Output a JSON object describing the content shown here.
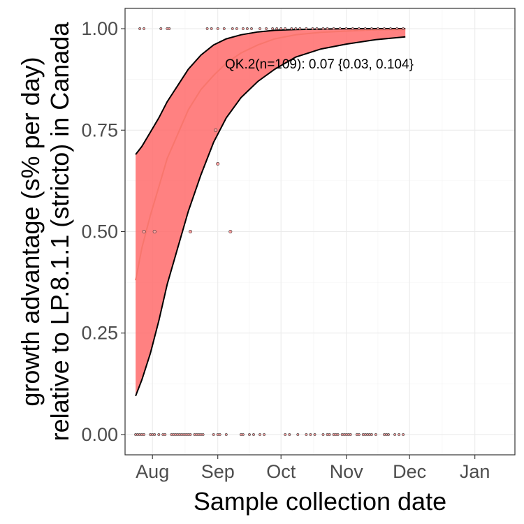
{
  "chart_data": {
    "type": "line",
    "xlabel": "Sample collection date",
    "ylabel_line1": "growth advantage (s% per day)",
    "ylabel_line2": "relative to LP.8.1.1 (stricto) in Canada",
    "annotation": "QK.2(n=109): 0.07 {0.03, 0.104}",
    "x_range": [
      "2025-07-19",
      "2026-01-20"
    ],
    "x_ticks": [
      {
        "date": "2025-08-01",
        "label": "Aug"
      },
      {
        "date": "2025-09-01",
        "label": "Sep"
      },
      {
        "date": "2025-10-01",
        "label": "Oct"
      },
      {
        "date": "2025-11-01",
        "label": "Nov"
      },
      {
        "date": "2025-12-01",
        "label": "Dec"
      },
      {
        "date": "2026-01-01",
        "label": "Jan"
      }
    ],
    "ylim": [
      -0.05,
      1.05
    ],
    "y_ticks": [
      {
        "value": 0.0,
        "label": "0.00"
      },
      {
        "value": 0.25,
        "label": "0.25"
      },
      {
        "value": 0.5,
        "label": "0.50"
      },
      {
        "value": 0.75,
        "label": "0.75"
      },
      {
        "value": 1.0,
        "label": "1.00"
      }
    ],
    "grid": true,
    "colors": {
      "ribbon": "#ff6b6b",
      "fit_line": "#f8766d",
      "ribbon_edge": "#000000",
      "point": "#ffa0a0",
      "grid": "#ebebeb"
    },
    "fit": [
      {
        "date": "2025-07-24",
        "mid": 0.38,
        "lo": 0.095,
        "hi": 0.69
      },
      {
        "date": "2025-07-27",
        "mid": 0.46,
        "lo": 0.135,
        "hi": 0.71
      },
      {
        "date": "2025-07-31",
        "mid": 0.54,
        "lo": 0.2,
        "hi": 0.745
      },
      {
        "date": "2025-08-04",
        "mid": 0.61,
        "lo": 0.28,
        "hi": 0.78
      },
      {
        "date": "2025-08-08",
        "mid": 0.68,
        "lo": 0.37,
        "hi": 0.82
      },
      {
        "date": "2025-08-13",
        "mid": 0.74,
        "lo": 0.46,
        "hi": 0.86
      },
      {
        "date": "2025-08-18",
        "mid": 0.8,
        "lo": 0.55,
        "hi": 0.9
      },
      {
        "date": "2025-08-24",
        "mid": 0.85,
        "lo": 0.64,
        "hi": 0.935
      },
      {
        "date": "2025-08-30",
        "mid": 0.885,
        "lo": 0.72,
        "hi": 0.96
      },
      {
        "date": "2025-09-05",
        "mid": 0.915,
        "lo": 0.78,
        "hi": 0.975
      },
      {
        "date": "2025-09-12",
        "mid": 0.94,
        "lo": 0.83,
        "hi": 0.985
      },
      {
        "date": "2025-09-20",
        "mid": 0.96,
        "lo": 0.87,
        "hi": 0.992
      },
      {
        "date": "2025-09-28",
        "mid": 0.975,
        "lo": 0.9,
        "hi": 0.996
      },
      {
        "date": "2025-10-08",
        "mid": 0.985,
        "lo": 0.93,
        "hi": 0.998
      },
      {
        "date": "2025-10-20",
        "mid": 0.991,
        "lo": 0.95,
        "hi": 0.999
      },
      {
        "date": "2025-11-01",
        "mid": 0.994,
        "lo": 0.962,
        "hi": 1.0
      },
      {
        "date": "2025-11-15",
        "mid": 0.997,
        "lo": 0.973,
        "hi": 1.0
      },
      {
        "date": "2025-11-29",
        "mid": 0.998,
        "lo": 0.98,
        "hi": 1.0
      }
    ],
    "points": [
      {
        "date": "2025-07-26",
        "y": 1.0
      },
      {
        "date": "2025-07-28",
        "y": 1.0
      },
      {
        "date": "2025-08-05",
        "y": 1.0
      },
      {
        "date": "2025-08-08",
        "y": 1.0
      },
      {
        "date": "2025-08-09",
        "y": 1.0
      },
      {
        "date": "2025-08-27",
        "y": 1.0
      },
      {
        "date": "2025-08-29",
        "y": 1.0
      },
      {
        "date": "2025-09-01",
        "y": 1.0
      },
      {
        "date": "2025-09-04",
        "y": 1.0
      },
      {
        "date": "2025-09-08",
        "y": 1.0
      },
      {
        "date": "2025-09-10",
        "y": 1.0
      },
      {
        "date": "2025-09-13",
        "y": 1.0
      },
      {
        "date": "2025-09-15",
        "y": 1.0
      },
      {
        "date": "2025-09-17",
        "y": 1.0
      },
      {
        "date": "2025-09-21",
        "y": 1.0
      },
      {
        "date": "2025-09-24",
        "y": 1.0
      },
      {
        "date": "2025-09-27",
        "y": 1.0
      },
      {
        "date": "2025-09-29",
        "y": 1.0
      },
      {
        "date": "2025-10-01",
        "y": 1.0
      },
      {
        "date": "2025-10-03",
        "y": 1.0
      },
      {
        "date": "2025-10-06",
        "y": 1.0
      },
      {
        "date": "2025-10-08",
        "y": 1.0
      },
      {
        "date": "2025-10-10",
        "y": 1.0
      },
      {
        "date": "2025-10-13",
        "y": 1.0
      },
      {
        "date": "2025-10-16",
        "y": 1.0
      },
      {
        "date": "2025-10-18",
        "y": 1.0
      },
      {
        "date": "2025-10-21",
        "y": 1.0
      },
      {
        "date": "2025-10-23",
        "y": 1.0
      },
      {
        "date": "2025-10-26",
        "y": 1.0
      },
      {
        "date": "2025-10-29",
        "y": 1.0
      },
      {
        "date": "2025-11-01",
        "y": 1.0
      },
      {
        "date": "2025-11-04",
        "y": 1.0
      },
      {
        "date": "2025-11-07",
        "y": 1.0
      },
      {
        "date": "2025-11-10",
        "y": 1.0
      },
      {
        "date": "2025-11-13",
        "y": 1.0
      },
      {
        "date": "2025-11-16",
        "y": 1.0
      },
      {
        "date": "2025-11-19",
        "y": 1.0
      },
      {
        "date": "2025-11-22",
        "y": 1.0
      },
      {
        "date": "2025-11-25",
        "y": 1.0
      },
      {
        "date": "2025-11-28",
        "y": 1.0
      },
      {
        "date": "2025-08-31",
        "y": 0.75
      },
      {
        "date": "2025-09-01",
        "y": 0.667
      },
      {
        "date": "2025-07-28",
        "y": 0.5
      },
      {
        "date": "2025-08-02",
        "y": 0.5
      },
      {
        "date": "2025-08-19",
        "y": 0.5
      },
      {
        "date": "2025-09-07",
        "y": 0.5
      },
      {
        "date": "2025-07-24",
        "y": 0.0
      },
      {
        "date": "2025-07-25",
        "y": 0.0
      },
      {
        "date": "2025-07-26",
        "y": 0.0
      },
      {
        "date": "2025-07-27",
        "y": 0.0
      },
      {
        "date": "2025-07-28",
        "y": 0.0
      },
      {
        "date": "2025-07-31",
        "y": 0.0
      },
      {
        "date": "2025-08-01",
        "y": 0.0
      },
      {
        "date": "2025-08-02",
        "y": 0.0
      },
      {
        "date": "2025-08-04",
        "y": 0.0
      },
      {
        "date": "2025-08-06",
        "y": 0.0
      },
      {
        "date": "2025-08-07",
        "y": 0.0
      },
      {
        "date": "2025-08-10",
        "y": 0.0
      },
      {
        "date": "2025-08-11",
        "y": 0.0
      },
      {
        "date": "2025-08-12",
        "y": 0.0
      },
      {
        "date": "2025-08-13",
        "y": 0.0
      },
      {
        "date": "2025-08-14",
        "y": 0.0
      },
      {
        "date": "2025-08-15",
        "y": 0.0
      },
      {
        "date": "2025-08-16",
        "y": 0.0
      },
      {
        "date": "2025-08-17",
        "y": 0.0
      },
      {
        "date": "2025-08-18",
        "y": 0.0
      },
      {
        "date": "2025-08-19",
        "y": 0.0
      },
      {
        "date": "2025-08-21",
        "y": 0.0
      },
      {
        "date": "2025-08-22",
        "y": 0.0
      },
      {
        "date": "2025-08-23",
        "y": 0.0
      },
      {
        "date": "2025-08-24",
        "y": 0.0
      },
      {
        "date": "2025-08-25",
        "y": 0.0
      },
      {
        "date": "2025-08-30",
        "y": 0.0
      },
      {
        "date": "2025-09-01",
        "y": 0.0
      },
      {
        "date": "2025-09-02",
        "y": 0.0
      },
      {
        "date": "2025-09-05",
        "y": 0.0
      },
      {
        "date": "2025-09-12",
        "y": 0.0
      },
      {
        "date": "2025-09-13",
        "y": 0.0
      },
      {
        "date": "2025-09-16",
        "y": 0.0
      },
      {
        "date": "2025-09-18",
        "y": 0.0
      },
      {
        "date": "2025-09-21",
        "y": 0.0
      },
      {
        "date": "2025-09-23",
        "y": 0.0
      },
      {
        "date": "2025-10-03",
        "y": 0.0
      },
      {
        "date": "2025-10-05",
        "y": 0.0
      },
      {
        "date": "2025-10-09",
        "y": 0.0
      },
      {
        "date": "2025-10-13",
        "y": 0.0
      },
      {
        "date": "2025-10-15",
        "y": 0.0
      },
      {
        "date": "2025-10-17",
        "y": 0.0
      },
      {
        "date": "2025-10-21",
        "y": 0.0
      },
      {
        "date": "2025-10-23",
        "y": 0.0
      },
      {
        "date": "2025-10-24",
        "y": 0.0
      },
      {
        "date": "2025-10-26",
        "y": 0.0
      },
      {
        "date": "2025-10-27",
        "y": 0.0
      },
      {
        "date": "2025-10-28",
        "y": 0.0
      },
      {
        "date": "2025-10-30",
        "y": 0.0
      },
      {
        "date": "2025-10-31",
        "y": 0.0
      },
      {
        "date": "2025-11-01",
        "y": 0.0
      },
      {
        "date": "2025-11-02",
        "y": 0.0
      },
      {
        "date": "2025-11-03",
        "y": 0.0
      },
      {
        "date": "2025-11-06",
        "y": 0.0
      },
      {
        "date": "2025-11-07",
        "y": 0.0
      },
      {
        "date": "2025-11-09",
        "y": 0.0
      },
      {
        "date": "2025-11-10",
        "y": 0.0
      },
      {
        "date": "2025-11-11",
        "y": 0.0
      },
      {
        "date": "2025-11-12",
        "y": 0.0
      },
      {
        "date": "2025-11-13",
        "y": 0.0
      },
      {
        "date": "2025-11-15",
        "y": 0.0
      },
      {
        "date": "2025-11-19",
        "y": 0.0
      },
      {
        "date": "2025-11-20",
        "y": 0.0
      },
      {
        "date": "2025-11-21",
        "y": 0.0
      },
      {
        "date": "2025-11-24",
        "y": 0.0
      },
      {
        "date": "2025-11-26",
        "y": 0.0
      },
      {
        "date": "2025-11-28",
        "y": 0.0
      }
    ]
  }
}
